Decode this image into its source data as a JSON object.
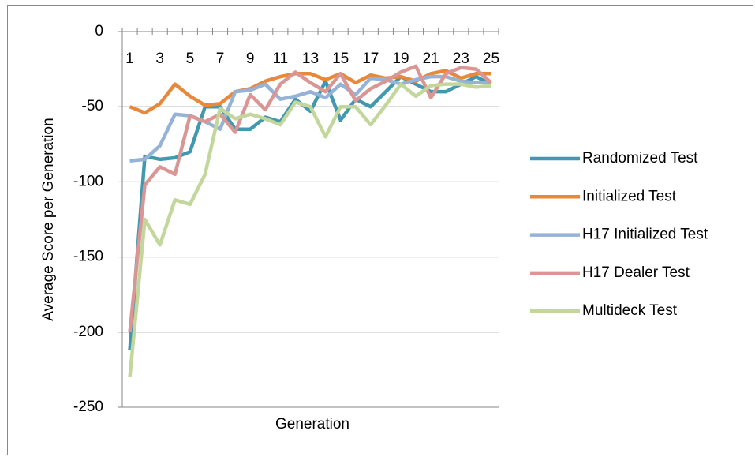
{
  "chart_data": {
    "type": "line",
    "x_label": "Generation",
    "y_label": "Average Score per Generation",
    "categories": [
      1,
      null,
      3,
      null,
      5,
      null,
      7,
      null,
      9,
      null,
      11,
      null,
      13,
      null,
      15,
      null,
      17,
      null,
      19,
      null,
      21,
      null,
      23,
      null,
      25
    ],
    "series": [
      {
        "name": "Randomized Test",
        "color": "#4198AF",
        "values": [
          -212,
          -83,
          -85,
          -84,
          -80,
          -50,
          -50,
          -65,
          -65,
          -57,
          -60,
          -45,
          -53,
          -33,
          -59,
          -45,
          -50,
          -40,
          -30,
          -35,
          -40,
          -40,
          -35,
          -30,
          -35
        ]
      },
      {
        "name": "Initialized Test",
        "color": "#E8883A",
        "values": [
          -50,
          -54,
          -48,
          -35,
          -43,
          -49,
          -48,
          -40,
          -38,
          -33,
          -30,
          -28,
          -28,
          -32,
          -28,
          -34,
          -29,
          -31,
          -30,
          -33,
          -28,
          -26,
          -31,
          -28,
          -28
        ]
      },
      {
        "name": "H17 Initialized Test",
        "color": "#95B3D7",
        "values": [
          -86,
          -85,
          -76,
          -55,
          -56,
          -60,
          -65,
          -40,
          -39,
          -35,
          -45,
          -43,
          -40,
          -44,
          -35,
          -42,
          -31,
          -32,
          -35,
          -32,
          -30,
          -30,
          -33,
          -34,
          -34
        ]
      },
      {
        "name": "H17 Dealer Test",
        "color": "#D99694",
        "values": [
          -200,
          -102,
          -90,
          -95,
          -56,
          -60,
          -55,
          -67,
          -42,
          -52,
          -35,
          -27,
          -34,
          -40,
          -28,
          -46,
          -38,
          -33,
          -27,
          -23,
          -44,
          -28,
          -24,
          -25,
          -34
        ]
      },
      {
        "name": "Multideck Test",
        "color": "#C3D69B",
        "values": [
          -230,
          -125,
          -142,
          -112,
          -115,
          -95,
          -51,
          -58,
          -55,
          -58,
          -62,
          -47,
          -50,
          -70,
          -50,
          -50,
          -62,
          -49,
          -35,
          -43,
          -36,
          -35,
          -35,
          -37,
          -36
        ]
      }
    ],
    "ylim": [
      -250,
      0
    ],
    "yticks": [
      0,
      -50,
      -100,
      -150,
      -200,
      -250
    ],
    "grid": true,
    "legend": "right"
  }
}
